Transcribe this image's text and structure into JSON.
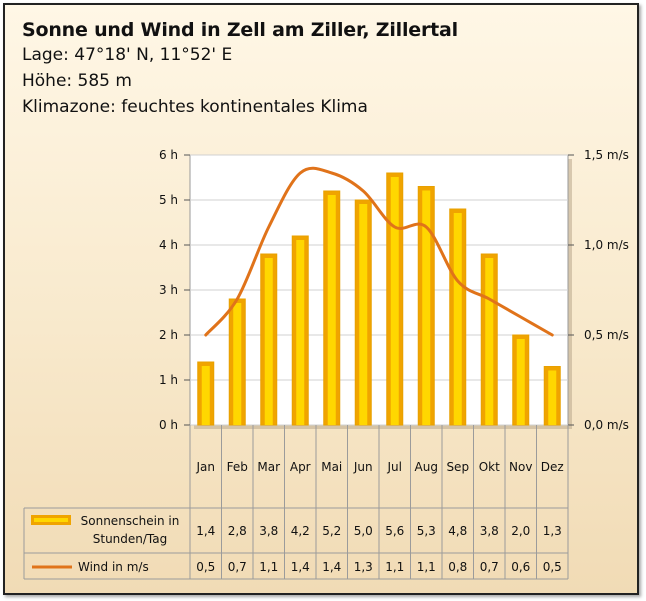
{
  "header": {
    "title": "Sonne und Wind in Zell am Ziller, Zillertal",
    "lines": [
      "Lage: 47°18' N, 11°52' E",
      "Höhe: 585 m",
      "Klimazone: feuchtes kontinentales Klima"
    ]
  },
  "colors": {
    "bar_fill": "#ffd700",
    "bar_edge": "#f0a400",
    "line": "#e0731a",
    "plot_bg": "#ffffff"
  },
  "chart_data": {
    "type": "bar",
    "categories": [
      "Jan",
      "Feb",
      "Mar",
      "Apr",
      "Mai",
      "Jun",
      "Jul",
      "Aug",
      "Sep",
      "Okt",
      "Nov",
      "Dez"
    ],
    "series": [
      {
        "name": "Sonnenschein in Stunden/Tag",
        "kind": "bar",
        "axis": "left",
        "values": [
          1.4,
          2.8,
          3.8,
          4.2,
          5.2,
          5.0,
          5.6,
          5.3,
          4.8,
          3.8,
          2.0,
          1.3
        ],
        "labels": [
          "1,4",
          "2,8",
          "3,8",
          "4,2",
          "5,2",
          "5,0",
          "5,6",
          "5,3",
          "4,8",
          "3,8",
          "2,0",
          "1,3"
        ]
      },
      {
        "name": "Wind in m/s",
        "kind": "line",
        "axis": "right",
        "values": [
          0.5,
          0.7,
          1.1,
          1.4,
          1.4,
          1.3,
          1.1,
          1.1,
          0.8,
          0.7,
          0.6,
          0.5
        ],
        "labels": [
          "0,5",
          "0,7",
          "1,1",
          "1,4",
          "1,4",
          "1,3",
          "1,1",
          "1,1",
          "0,8",
          "0,7",
          "0,6",
          "0,5"
        ]
      }
    ],
    "y_left": {
      "ylim": [
        0,
        6
      ],
      "ticks": [
        0,
        1,
        2,
        3,
        4,
        5,
        6
      ],
      "tick_labels": [
        "0 h",
        "1 h",
        "2 h",
        "3 h",
        "4 h",
        "5 h",
        "6 h"
      ]
    },
    "y_right": {
      "ylim": [
        0,
        1.5
      ],
      "ticks": [
        0,
        0.5,
        1.0,
        1.5
      ],
      "tick_labels": [
        "0,0 m/s",
        "0,5 m/s",
        "1,0 m/s",
        "1,5 m/s"
      ]
    },
    "grid": true,
    "legend": "data-table"
  }
}
